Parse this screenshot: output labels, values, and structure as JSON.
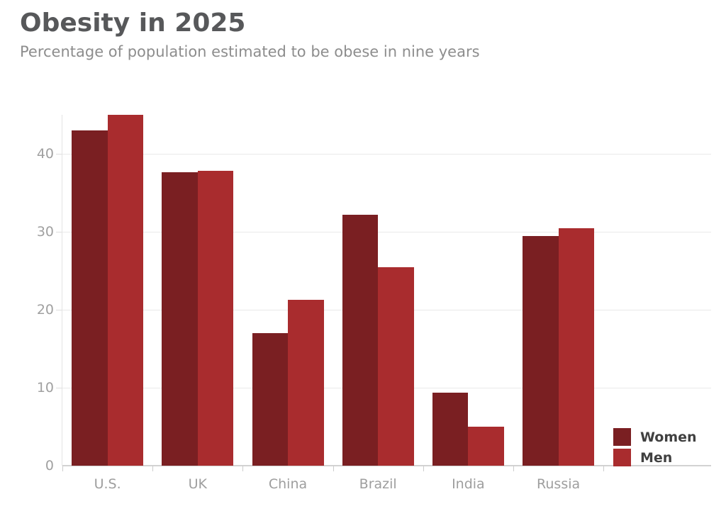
{
  "chart_data": {
    "type": "bar",
    "title": "Obesity in 2025",
    "subtitle": "Percentage of population estimated to be obese in nine years",
    "categories": [
      "U.S.",
      "UK",
      "China",
      "Brazil",
      "India",
      "Russia"
    ],
    "series": [
      {
        "name": "Women",
        "color": "#7a1f22",
        "values": [
          43,
          37.6,
          17,
          32.2,
          9.4,
          29.5
        ]
      },
      {
        "name": "Men",
        "color": "#a92c2e",
        "values": [
          45,
          37.8,
          21.3,
          25.5,
          5,
          30.5
        ]
      }
    ],
    "xlabel": "",
    "ylabel": "",
    "y_ticks": [
      0,
      10,
      20,
      30,
      40
    ],
    "ylim": [
      0,
      47
    ],
    "grid": true,
    "legend_position": "bottom-right",
    "colors": {
      "title_text": "#57585a",
      "subtitle_text": "#8d8d8d",
      "axis_text": "#9e9e9e",
      "legend_text": "#404040",
      "gridline": "#e9e9e9"
    }
  }
}
